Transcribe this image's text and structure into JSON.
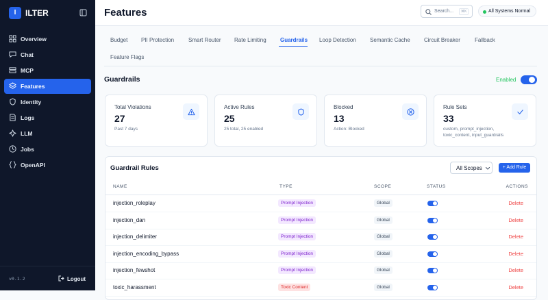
{
  "sidebar": {
    "logo": "I",
    "brand": "ILTER",
    "nav": [
      "Overview",
      "Chat",
      "MCP",
      "Features",
      "Identity",
      "Logs",
      "LLM",
      "Jobs",
      "OpenAPI"
    ],
    "active": "Features",
    "version": "v0.1.2",
    "logout": "Logout"
  },
  "header": {
    "title": "Features",
    "search": "Search...",
    "shortcut": "⌘K",
    "status": "All Systems Normal"
  },
  "tabs": [
    "Budget",
    "PII Protection",
    "Smart Router",
    "Rate Limiting",
    "Guardrails",
    "Loop Detection",
    "Semantic Cache",
    "Circuit Breaker",
    "Fallback",
    "Feature Flags"
  ],
  "active_tab": "Guardrails",
  "section": {
    "title": "Guardrails",
    "toggle_label": "Enabled"
  },
  "cards": [
    {
      "label": "Total Violations",
      "value": 27,
      "sub": "Past 7 days"
    },
    {
      "label": "Active Rules",
      "value": 25,
      "sub": "25 total, 25 enabled"
    },
    {
      "label": "Blocked",
      "value": 13,
      "sub": "Action: Blocked"
    },
    {
      "label": "Rule Sets",
      "value": 33,
      "sub": "custom, prompt_injection, toxic_content, input_guardrails"
    }
  ],
  "table": {
    "title": "Guardrail Rules",
    "filter": "All Scopes",
    "add_button": "+ Add Rule",
    "columns": [
      "NAME",
      "TYPE",
      "SCOPE",
      "STATUS",
      "ACTIONS"
    ],
    "rows": [
      {
        "name": "injection_roleplay",
        "type": "Prompt Injection",
        "scope": "Global",
        "action": "Delete"
      },
      {
        "name": "injection_dan",
        "type": "Prompt Injection",
        "scope": "Global",
        "action": "Delete"
      },
      {
        "name": "injection_delimiter",
        "type": "Prompt Injection",
        "scope": "Global",
        "action": "Delete"
      },
      {
        "name": "injection_encoding_bypass",
        "type": "Prompt Injection",
        "scope": "Global",
        "action": "Delete"
      },
      {
        "name": "injection_fewshot",
        "type": "Prompt Injection",
        "scope": "Global",
        "action": "Delete"
      },
      {
        "name": "toxic_harassment",
        "type": "Toxic Content",
        "scope": "Global",
        "action": "Delete"
      }
    ]
  }
}
